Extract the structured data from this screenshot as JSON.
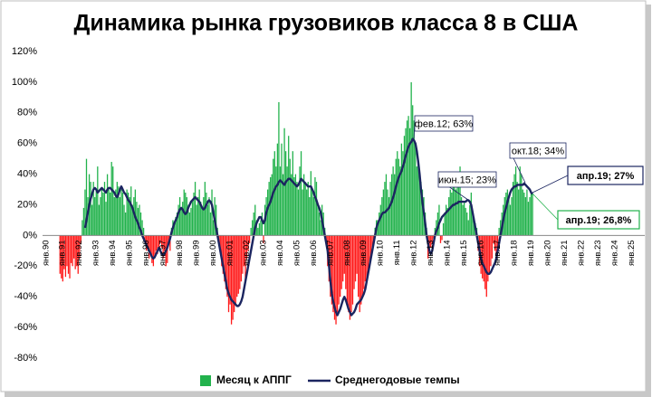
{
  "chart_data": {
    "type": "bar_line",
    "title": "Динамика рынка грузовиков класса 8 в США",
    "ylim": [
      -80,
      120
    ],
    "yticks": [
      {
        "value": -80,
        "label": "-80%"
      },
      {
        "value": -60,
        "label": "-60%"
      },
      {
        "value": -40,
        "label": "-40%"
      },
      {
        "value": -20,
        "label": "-20%"
      },
      {
        "value": 0,
        "label": "0%"
      },
      {
        "value": 20,
        "label": "20%"
      },
      {
        "value": 40,
        "label": "40%"
      },
      {
        "value": 60,
        "label": "60%"
      },
      {
        "value": 80,
        "label": "80%"
      },
      {
        "value": 100,
        "label": "100%"
      },
      {
        "value": 120,
        "label": "120%"
      }
    ],
    "grid": false,
    "categories": [
      "янв.90",
      null,
      null,
      null,
      null,
      null,
      null,
      null,
      null,
      null,
      null,
      null,
      "янв.91",
      null,
      null,
      null,
      null,
      null,
      null,
      null,
      null,
      null,
      null,
      null,
      "янв.92",
      null,
      null,
      null,
      null,
      null,
      null,
      null,
      null,
      null,
      null,
      null,
      "янв.93",
      null,
      null,
      null,
      null,
      null,
      null,
      null,
      null,
      null,
      null,
      null,
      "янв.94",
      null,
      null,
      null,
      null,
      null,
      null,
      null,
      null,
      null,
      null,
      null,
      "янв.95",
      null,
      null,
      null,
      null,
      null,
      null,
      null,
      null,
      null,
      null,
      null,
      "янв.96",
      null,
      null,
      null,
      null,
      null,
      null,
      null,
      null,
      null,
      null,
      null,
      "янв.97",
      null,
      null,
      null,
      null,
      null,
      null,
      null,
      null,
      null,
      null,
      null,
      "янв.98",
      null,
      null,
      null,
      null,
      null,
      null,
      null,
      null,
      null,
      null,
      null,
      "янв.99",
      null,
      null,
      null,
      null,
      null,
      null,
      null,
      null,
      null,
      null,
      null,
      "янв.00",
      null,
      null,
      null,
      null,
      null,
      null,
      null,
      null,
      null,
      null,
      null,
      "янв.01",
      null,
      null,
      null,
      null,
      null,
      null,
      null,
      null,
      null,
      null,
      null,
      "янв.02",
      null,
      null,
      null,
      null,
      null,
      null,
      null,
      null,
      null,
      null,
      null,
      "янв.03",
      null,
      null,
      null,
      null,
      null,
      null,
      null,
      null,
      null,
      null,
      null,
      "янв.04",
      null,
      null,
      null,
      null,
      null,
      null,
      null,
      null,
      null,
      null,
      null,
      "янв.05",
      null,
      null,
      null,
      null,
      null,
      null,
      null,
      null,
      null,
      null,
      null,
      "янв.06",
      null,
      null,
      null,
      null,
      null,
      null,
      null,
      null,
      null,
      null,
      null,
      "янв.07",
      null,
      null,
      null,
      null,
      null,
      null,
      null,
      null,
      null,
      null,
      null,
      "янв.08",
      null,
      null,
      null,
      null,
      null,
      null,
      null,
      null,
      null,
      null,
      null,
      "янв.09",
      null,
      null,
      null,
      null,
      null,
      null,
      null,
      null,
      null,
      null,
      null,
      "янв.10",
      null,
      null,
      null,
      null,
      null,
      null,
      null,
      null,
      null,
      null,
      null,
      "янв.11",
      null,
      null,
      null,
      null,
      null,
      null,
      null,
      null,
      null,
      null,
      null,
      "янв.12",
      null,
      null,
      null,
      null,
      null,
      null,
      null,
      null,
      null,
      null,
      null,
      "янв.13",
      null,
      null,
      null,
      null,
      null,
      null,
      null,
      null,
      null,
      null,
      null,
      "янв.14",
      null,
      null,
      null,
      null,
      null,
      null,
      null,
      null,
      null,
      null,
      null,
      "янв.15",
      null,
      null,
      null,
      null,
      null,
      null,
      null,
      null,
      null,
      null,
      null,
      "янв.16",
      null,
      null,
      null,
      null,
      null,
      null,
      null,
      null,
      null,
      null,
      null,
      "янв.17",
      null,
      null,
      null,
      null,
      null,
      null,
      null,
      null,
      null,
      null,
      null,
      "янв.18",
      null,
      null,
      null,
      null,
      null,
      null,
      null,
      null,
      null,
      null,
      null,
      "янв.19",
      null,
      null,
      null,
      null,
      null,
      null,
      null,
      null,
      null,
      null,
      null,
      "янв.20",
      null,
      null,
      null,
      null,
      null,
      null,
      null,
      null,
      null,
      null,
      null,
      "янв.21",
      null,
      null,
      null,
      null,
      null,
      null,
      null,
      null,
      null,
      null,
      null,
      "янв.22",
      null,
      null,
      null,
      null,
      null,
      null,
      null,
      null,
      null,
      null,
      null,
      "янв.23",
      null,
      null,
      null,
      null,
      null,
      null,
      null,
      null,
      null,
      null,
      null,
      "янв.24",
      null,
      null,
      null,
      null,
      null,
      null,
      null,
      null,
      null,
      null,
      null,
      "янв.25",
      null,
      null,
      null,
      null,
      null,
      null,
      null,
      null,
      null,
      null,
      null
    ],
    "series": [
      {
        "name": "Месяц к АППГ",
        "kind": "bar",
        "color": "#22b24c",
        "negative_color": "#ff1a1a",
        "values": [
          null,
          null,
          null,
          null,
          null,
          null,
          null,
          null,
          null,
          null,
          null,
          null,
          -25,
          -28,
          -30,
          -22,
          -27,
          -20,
          -25,
          -28,
          -18,
          -20,
          -15,
          -22,
          -20,
          -25,
          -15,
          -5,
          10,
          18,
          30,
          50,
          25,
          40,
          35,
          20,
          35,
          25,
          30,
          45,
          20,
          25,
          30,
          28,
          35,
          22,
          40,
          30,
          28,
          48,
          45,
          25,
          30,
          35,
          32,
          25,
          30,
          28,
          20,
          15,
          30,
          28,
          25,
          32,
          20,
          25,
          30,
          22,
          18,
          20,
          15,
          10,
          5,
          -5,
          -10,
          -8,
          -15,
          -12,
          -18,
          -20,
          -15,
          -10,
          -12,
          -8,
          -5,
          -8,
          -15,
          -10,
          -20,
          -18,
          -5,
          -10,
          5,
          10,
          8,
          12,
          15,
          20,
          25,
          18,
          22,
          30,
          28,
          25,
          20,
          15,
          18,
          22,
          28,
          35,
          20,
          25,
          30,
          22,
          18,
          25,
          35,
          28,
          20,
          25,
          15,
          30,
          10,
          25,
          20,
          5,
          -5,
          -10,
          -20,
          -25,
          -30,
          -35,
          -40,
          -50,
          -45,
          -58,
          -55,
          -50,
          -45,
          -40,
          -38,
          -35,
          -30,
          -25,
          -20,
          -30,
          -15,
          -10,
          -5,
          5,
          10,
          15,
          20,
          10,
          5,
          8,
          10,
          15,
          -5,
          20,
          25,
          30,
          35,
          38,
          40,
          50,
          55,
          45,
          60,
          87,
          45,
          60,
          40,
          70,
          55,
          45,
          65,
          50,
          40,
          55,
          38,
          40,
          35,
          30,
          45,
          55,
          30,
          40,
          35,
          30,
          35,
          25,
          42,
          30,
          25,
          38,
          35,
          20,
          15,
          10,
          20,
          15,
          5,
          -5,
          -20,
          -30,
          -40,
          -45,
          -50,
          -55,
          -58,
          -50,
          -45,
          -40,
          -35,
          -30,
          -25,
          -35,
          -45,
          -50,
          -55,
          -50,
          -45,
          -35,
          -30,
          -25,
          -40,
          -50,
          -45,
          -40,
          -35,
          -30,
          -30,
          -25,
          -20,
          -15,
          -10,
          -5,
          5,
          10,
          10,
          15,
          20,
          25,
          30,
          35,
          40,
          30,
          25,
          35,
          40,
          45,
          40,
          50,
          55,
          50,
          45,
          60,
          55,
          65,
          70,
          75,
          78,
          70,
          100,
          85,
          75,
          60,
          45,
          50,
          40,
          35,
          30,
          25,
          15,
          5,
          -15,
          -10,
          -8,
          -5,
          -2,
          5,
          10,
          15,
          20,
          -5,
          -3,
          8,
          15,
          20,
          18,
          25,
          30,
          28,
          35,
          32,
          30,
          38,
          40,
          45,
          25,
          20,
          22,
          18,
          15,
          10,
          20,
          28,
          15,
          12,
          8,
          5,
          -10,
          -20,
          -25,
          -28,
          -30,
          -35,
          -40,
          -30,
          -25,
          -20,
          -15,
          -5,
          -10,
          -15,
          -8,
          5,
          10,
          15,
          20,
          25,
          28,
          30,
          25,
          20,
          25,
          35,
          40,
          45,
          35,
          30,
          45,
          40,
          30,
          28,
          25,
          30,
          22,
          25,
          28,
          27,
          null,
          null,
          null,
          null,
          null,
          null,
          null,
          null,
          null,
          null,
          null,
          null,
          null,
          null,
          null,
          null,
          null,
          null,
          null,
          null,
          null,
          null,
          null,
          null,
          null,
          null,
          null,
          null,
          null,
          null,
          null,
          null,
          null,
          null,
          null,
          null,
          null,
          null,
          null,
          null,
          null,
          null,
          null,
          null,
          null,
          null,
          null,
          null,
          null,
          null,
          null,
          null,
          null,
          null,
          null,
          null,
          null,
          null,
          null,
          null,
          null,
          null,
          null,
          null,
          null,
          null,
          null,
          null,
          null,
          null,
          null,
          null,
          null,
          null,
          null,
          null,
          null,
          null,
          null,
          null
        ]
      },
      {
        "name": "Среднегодовые темпы",
        "kind": "line",
        "color": "#1b2560",
        "values": [
          null,
          null,
          null,
          null,
          null,
          null,
          null,
          null,
          null,
          null,
          null,
          null,
          null,
          null,
          null,
          null,
          null,
          null,
          null,
          null,
          null,
          null,
          null,
          null,
          null,
          null,
          null,
          null,
          null,
          null,
          5,
          10,
          15,
          20,
          24,
          27,
          30,
          31,
          30,
          28,
          29,
          30,
          31,
          30,
          29,
          28,
          30,
          31,
          31,
          30,
          29,
          28,
          26,
          25,
          27,
          30,
          32,
          30,
          28,
          27,
          25,
          23,
          22,
          20,
          18,
          15,
          12,
          10,
          8,
          5,
          3,
          0,
          -2,
          -4,
          -6,
          -8,
          -10,
          -12,
          -14,
          -15,
          -14,
          -12,
          -10,
          -8,
          -10,
          -12,
          -13,
          -12,
          -10,
          -8,
          -5,
          -2,
          2,
          5,
          8,
          10,
          12,
          15,
          17,
          18,
          17,
          15,
          14,
          15,
          18,
          20,
          22,
          23,
          24,
          25,
          24,
          23,
          22,
          20,
          18,
          17,
          18,
          20,
          22,
          23,
          22,
          20,
          15,
          10,
          5,
          0,
          -5,
          -10,
          -15,
          -20,
          -25,
          -30,
          -35,
          -38,
          -40,
          -42,
          -43,
          -44,
          -45,
          -46,
          -46,
          -45,
          -43,
          -40,
          -35,
          -30,
          -25,
          -20,
          -15,
          -10,
          -5,
          0,
          5,
          8,
          10,
          12,
          12,
          10,
          8,
          10,
          15,
          18,
          20,
          22,
          25,
          28,
          30,
          32,
          33,
          35,
          36,
          35,
          34,
          33,
          35,
          36,
          37,
          37,
          36,
          35,
          34,
          33,
          32,
          33,
          35,
          37,
          36,
          35,
          34,
          33,
          32,
          32,
          32,
          30,
          28,
          25,
          23,
          20,
          18,
          15,
          10,
          5,
          0,
          -5,
          -10,
          -20,
          -30,
          -38,
          -43,
          -47,
          -50,
          -52,
          -50,
          -48,
          -45,
          -42,
          -40,
          -42,
          -45,
          -48,
          -50,
          -52,
          -51,
          -50,
          -48,
          -45,
          -44,
          -43,
          -42,
          -40,
          -38,
          -35,
          -30,
          -25,
          -20,
          -15,
          -10,
          -5,
          0,
          5,
          8,
          10,
          12,
          14,
          15,
          15,
          16,
          17,
          18,
          20,
          22,
          25,
          28,
          32,
          35,
          38,
          40,
          42,
          45,
          48,
          52,
          55,
          58,
          60,
          61,
          63,
          62,
          60,
          55,
          48,
          40,
          30,
          22,
          15,
          8,
          0,
          -5,
          -10,
          -12,
          -10,
          -5,
          0,
          3,
          5,
          8,
          10,
          12,
          13,
          14,
          15,
          16,
          17,
          18,
          19,
          20,
          20,
          21,
          21,
          22,
          22,
          22,
          22,
          22,
          22,
          23,
          23,
          22,
          20,
          15,
          10,
          5,
          0,
          -5,
          -10,
          -15,
          -18,
          -20,
          -22,
          -24,
          -25,
          -25,
          -24,
          -22,
          -20,
          -18,
          -15,
          -10,
          -5,
          0,
          5,
          10,
          15,
          18,
          22,
          25,
          28,
          30,
          31,
          32,
          32,
          33,
          33,
          33,
          33,
          33,
          34,
          33,
          32,
          31,
          30,
          28,
          27,
          null,
          null,
          null,
          null,
          null,
          null,
          null,
          null,
          null,
          null,
          null,
          null,
          null,
          null,
          null,
          null,
          null,
          null,
          null,
          null,
          null,
          null,
          null,
          null,
          null,
          null,
          null,
          null,
          null,
          null,
          null,
          null,
          null,
          null,
          null,
          null,
          null,
          null,
          null,
          null,
          null,
          null,
          null,
          null,
          null,
          null,
          null,
          null,
          null,
          null,
          null,
          null,
          null,
          null,
          null,
          null,
          null,
          null,
          null,
          null,
          null,
          null,
          null,
          null,
          null,
          null,
          null,
          null,
          null,
          null,
          null,
          null,
          null,
          null,
          null,
          null,
          null,
          null,
          null,
          null
        ]
      }
    ],
    "annotations": [
      {
        "text": "фев.12; 63%"
      },
      {
        "text": "июн.15; 23%"
      },
      {
        "text": "окт.18; 34%"
      },
      {
        "text": "апр.19; 27%"
      },
      {
        "text": "апр.19; 26,8%"
      }
    ]
  }
}
